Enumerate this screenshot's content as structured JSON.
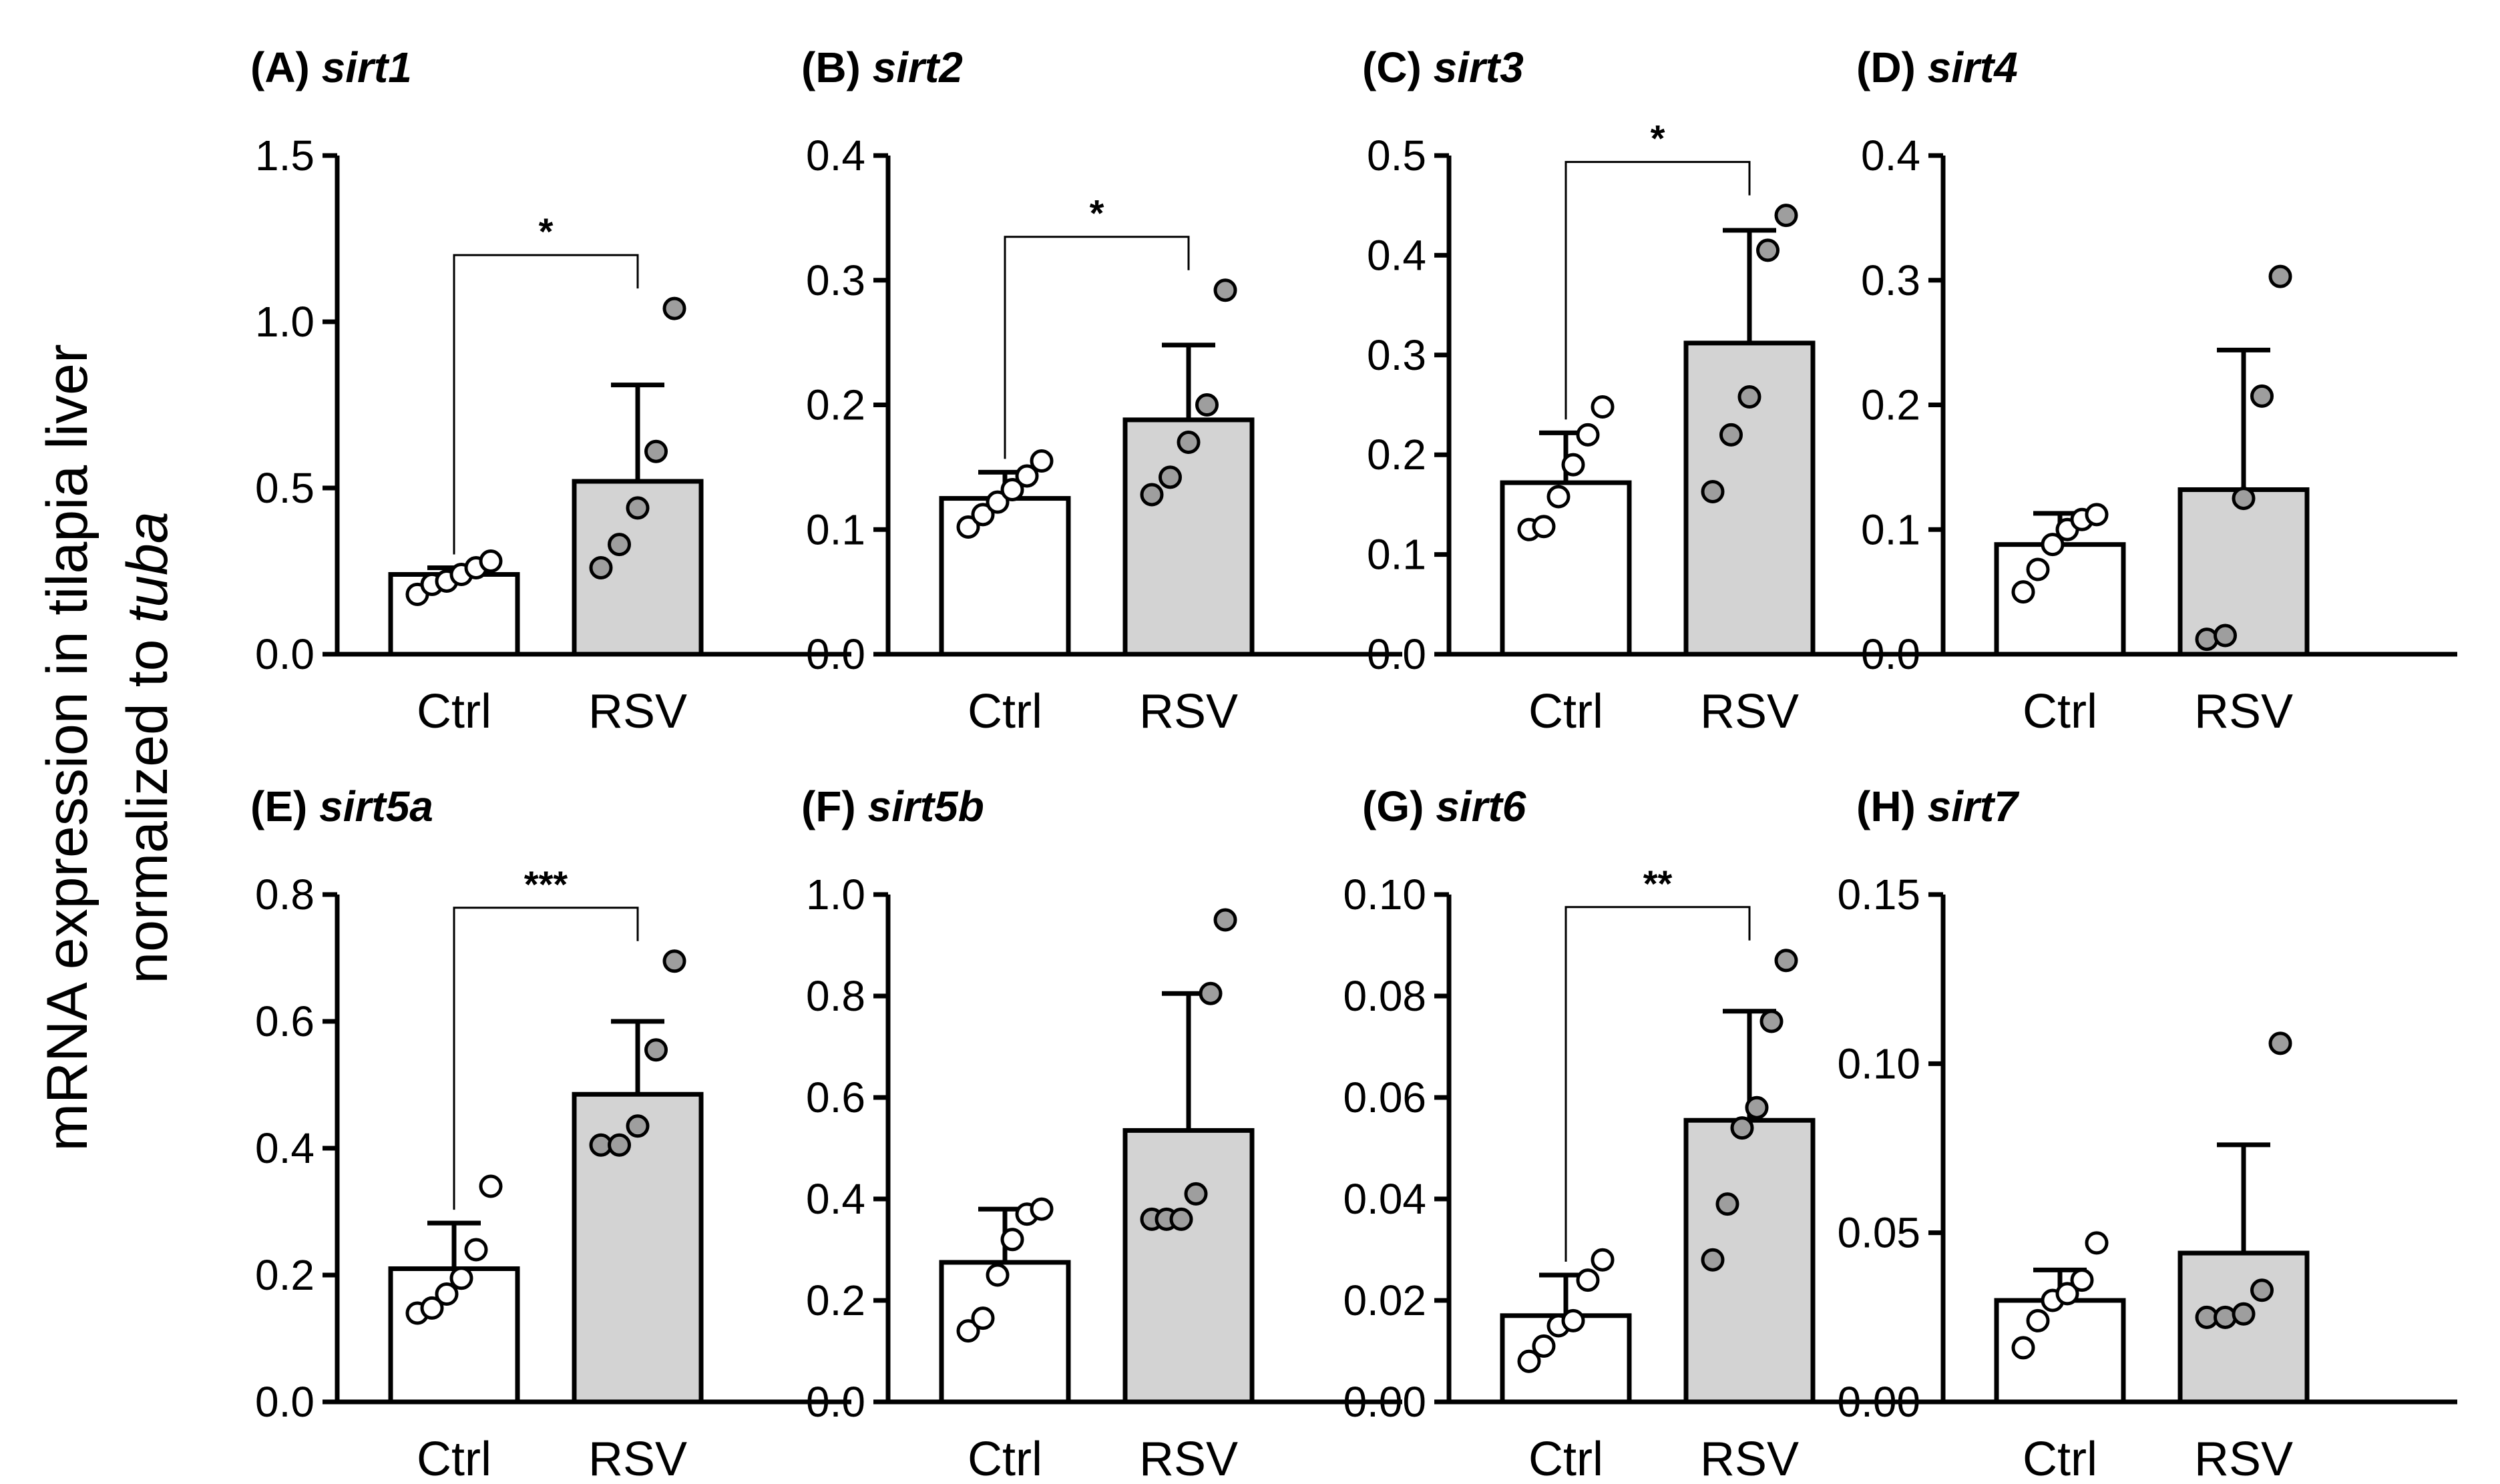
{
  "figure": {
    "ylabel_line1": "mRNA expression in tilapia liver",
    "ylabel_line2_prefix": "normalized to ",
    "ylabel_line2_italic": "tuba",
    "colors": {
      "ctrl_fill": "#ffffff",
      "rsv_fill": "#d3d3d3",
      "stroke": "#000000"
    }
  },
  "chart_data": [
    {
      "type": "bar",
      "panel": "(A)",
      "gene": "sirt1",
      "categories": [
        "Ctrl",
        "RSV"
      ],
      "ylim": [
        0,
        1.5
      ],
      "yticks": [
        0.0,
        0.5,
        1.0,
        1.5
      ],
      "tick_labels": [
        "0.0",
        "0.5",
        "1.0",
        "1.5"
      ],
      "values": [
        0.24,
        0.52
      ],
      "errors": [
        0.02,
        0.29
      ],
      "points": [
        [
          0.18,
          0.21,
          0.22,
          0.24,
          0.26,
          0.28
        ],
        [
          0.26,
          0.33,
          0.44,
          0.61,
          1.04
        ]
      ],
      "significance": "*"
    },
    {
      "type": "bar",
      "panel": "(B)",
      "gene": "sirt2",
      "categories": [
        "Ctrl",
        "RSV"
      ],
      "ylim": [
        0,
        0.4
      ],
      "yticks": [
        0.0,
        0.1,
        0.2,
        0.3,
        0.4
      ],
      "tick_labels": [
        "0.0",
        "0.1",
        "0.2",
        "0.3",
        "0.4"
      ],
      "values": [
        0.125,
        0.188
      ],
      "errors": [
        0.021,
        0.06
      ],
      "points": [
        [
          0.102,
          0.112,
          0.122,
          0.132,
          0.143,
          0.155
        ],
        [
          0.128,
          0.142,
          0.17,
          0.2,
          0.292
        ]
      ],
      "significance": "*"
    },
    {
      "type": "bar",
      "panel": "(C)",
      "gene": "sirt3",
      "categories": [
        "Ctrl",
        "RSV"
      ],
      "ylim": [
        0,
        0.5
      ],
      "yticks": [
        0.0,
        0.1,
        0.2,
        0.3,
        0.4,
        0.5
      ],
      "tick_labels": [
        "0.0",
        "0.1",
        "0.2",
        "0.3",
        "0.4",
        "0.5"
      ],
      "values": [
        0.172,
        0.312
      ],
      "errors": [
        0.05,
        0.113
      ],
      "points": [
        [
          0.125,
          0.128,
          0.158,
          0.19,
          0.22,
          0.248
        ],
        [
          0.163,
          0.22,
          0.258,
          0.405,
          0.44
        ]
      ],
      "significance": "*"
    },
    {
      "type": "bar",
      "panel": "(D)",
      "gene": "sirt4",
      "categories": [
        "Ctrl",
        "RSV"
      ],
      "ylim": [
        0,
        0.4
      ],
      "yticks": [
        0.0,
        0.1,
        0.2,
        0.3,
        0.4
      ],
      "tick_labels": [
        "0.0",
        "0.1",
        "0.2",
        "0.3",
        "0.4"
      ],
      "values": [
        0.088,
        0.132
      ],
      "errors": [
        0.025,
        0.112
      ],
      "points": [
        [
          0.05,
          0.068,
          0.088,
          0.1,
          0.108,
          0.112
        ],
        [
          0.012,
          0.015,
          0.125,
          0.207,
          0.303
        ]
      ],
      "significance": ""
    },
    {
      "type": "bar",
      "panel": "(E)",
      "gene": "sirt5a",
      "categories": [
        "Ctrl",
        "RSV"
      ],
      "ylim": [
        0,
        0.8
      ],
      "yticks": [
        0.0,
        0.2,
        0.4,
        0.6,
        0.8
      ],
      "tick_labels": [
        "0.0",
        "0.2",
        "0.4",
        "0.6",
        "0.8"
      ],
      "values": [
        0.21,
        0.485
      ],
      "errors": [
        0.072,
        0.115
      ],
      "points": [
        [
          0.14,
          0.148,
          0.17,
          0.195,
          0.24,
          0.34
        ],
        [
          0.405,
          0.405,
          0.435,
          0.555,
          0.695
        ]
      ],
      "significance": "***"
    },
    {
      "type": "bar",
      "panel": "(F)",
      "gene": "sirt5b",
      "categories": [
        "Ctrl",
        "RSV"
      ],
      "ylim": [
        0,
        1.0
      ],
      "yticks": [
        0.0,
        0.2,
        0.4,
        0.6,
        0.8,
        1.0
      ],
      "tick_labels": [
        "0.0",
        "0.2",
        "0.4",
        "0.6",
        "0.8",
        "1.0"
      ],
      "values": [
        0.275,
        0.535
      ],
      "errors": [
        0.105,
        0.27
      ],
      "points": [
        [
          0.14,
          0.165,
          0.25,
          0.32,
          0.37,
          0.38
        ],
        [
          0.36,
          0.36,
          0.36,
          0.41,
          0.805,
          0.95
        ]
      ],
      "significance": ""
    },
    {
      "type": "bar",
      "panel": "(G)",
      "gene": "sirt6",
      "categories": [
        "Ctrl",
        "RSV"
      ],
      "ylim": [
        0,
        0.1
      ],
      "yticks": [
        0.0,
        0.02,
        0.04,
        0.06,
        0.08,
        0.1
      ],
      "tick_labels": [
        "0.00",
        "0.02",
        "0.04",
        "0.06",
        "0.08",
        "0.10"
      ],
      "values": [
        0.017,
        0.0555
      ],
      "errors": [
        0.008,
        0.0215
      ],
      "points": [
        [
          0.008,
          0.011,
          0.015,
          0.016,
          0.024,
          0.028
        ],
        [
          0.028,
          0.039,
          0.054,
          0.058,
          0.075,
          0.087
        ]
      ],
      "significance": "**"
    },
    {
      "type": "bar",
      "panel": "(H)",
      "gene": "sirt7",
      "categories": [
        "Ctrl",
        "RSV"
      ],
      "ylim": [
        0,
        0.15
      ],
      "yticks": [
        0.0,
        0.05,
        0.1,
        0.15
      ],
      "tick_labels": [
        "0.00",
        "0.05",
        "0.10",
        "0.15"
      ],
      "values": [
        0.03,
        0.044
      ],
      "errors": [
        0.009,
        0.032
      ],
      "points": [
        [
          0.016,
          0.024,
          0.03,
          0.032,
          0.036,
          0.047
        ],
        [
          0.025,
          0.025,
          0.026,
          0.033,
          0.106
        ]
      ],
      "significance": ""
    }
  ]
}
